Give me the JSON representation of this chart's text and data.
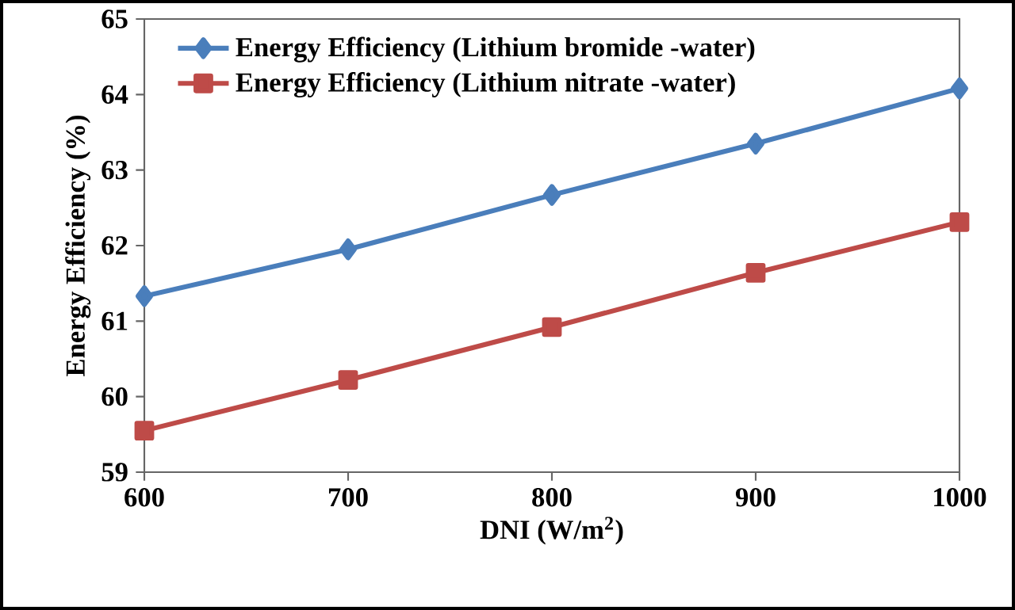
{
  "chart_data": {
    "type": "line",
    "xlabel": "DNI (W/m$^{2}$)",
    "ylabel": "Energy Efficiency (%)",
    "x": [
      600,
      700,
      800,
      900,
      1000
    ],
    "series": [
      {
        "name": "Energy Efficiency (Lithium bromide -water)",
        "color": "#4a7ebb",
        "marker": "diamond",
        "values": [
          61.33,
          61.95,
          62.67,
          63.35,
          64.08
        ]
      },
      {
        "name": "Energy Efficiency (Lithium nitrate -water)",
        "color": "#be4b48",
        "marker": "square",
        "values": [
          59.55,
          60.22,
          60.92,
          61.64,
          62.31
        ]
      }
    ],
    "xlim": [
      600,
      1000
    ],
    "xticks": [
      600,
      700,
      800,
      900,
      1000
    ],
    "ylim": [
      59,
      65
    ],
    "yticks": [
      59,
      60,
      61,
      62,
      63,
      64,
      65
    ],
    "grid": false,
    "legend": "top left",
    "line_style": "solid"
  }
}
